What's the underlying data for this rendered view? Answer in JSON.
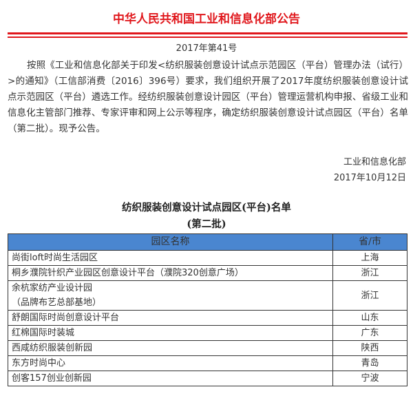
{
  "header": {
    "title": "中华人民共和国工业和信息化部公告",
    "number": "2017年第41号"
  },
  "body": {
    "paragraph": "按照《工业和信息化部关于印发<纺织服装创意设计试点示范园区（平台）管理办法（试行）>的通知》（工信部消费〔2016〕396号）要求，我们组织开展了2017年度纺织服装创意设计试点示范园区（平台）遴选工作。经纺织服装创意设计园区（平台）管理运营机构申报、省级工业和信息化主管部门推荐、专家评审和网上公示等程序，确定纺织服装创意设计试点园区（平台）名单（第二批）。现予公告。"
  },
  "signature": {
    "org": "工业和信息化部",
    "date": "2017年10月12日"
  },
  "list": {
    "title": "纺织服装创意设计试点园区(平台)名单",
    "subtitle": "(第二批)",
    "header_color": "#4a86d0",
    "columns": [
      "园区名称",
      "省/市"
    ],
    "rows": [
      {
        "name": "尚街loft时尚生活园区",
        "province": "上海"
      },
      {
        "name": "桐乡濮院针织产业园区创意设计平台（濮院320创意广场）",
        "province": "浙江"
      },
      {
        "name": "余杭家纺产业设计园",
        "name2": "（品牌布艺总部基地）",
        "province": "浙江"
      },
      {
        "name": "舒朗国际时尚创意设计平台",
        "province": "山东"
      },
      {
        "name": "红棉国际时装城",
        "province": "广东"
      },
      {
        "name": "西咸纺织服装创新园",
        "province": "陕西"
      },
      {
        "name": "东方时尚中心",
        "province": "青岛"
      },
      {
        "name": "创客157创业创新园",
        "province": "宁波"
      }
    ]
  }
}
